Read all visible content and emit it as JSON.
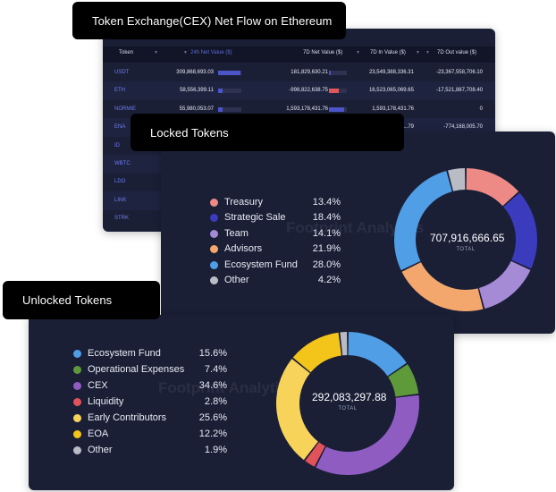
{
  "net_flow": {
    "title": "Token Exchange(CEX) Net Flow on Ethereum",
    "columns": [
      "Token",
      "24h Net Value ($)",
      "7D Net Value ($)",
      "7D In Value ($)",
      "7D Out value ($)"
    ],
    "rows": [
      {
        "token": "USDT",
        "net24": "309,868,693.03",
        "net24_frac": 0.95,
        "net7d": "181,829,630.21",
        "net7d_frac": 0.08,
        "net7d_sign": "pos",
        "in7d": "23,549,388,336.31",
        "out7d": "-23,367,558,706.10"
      },
      {
        "token": "ETH",
        "net24": "58,556,399.11",
        "net24_frac": 0.2,
        "net7d": "-998,822,638.75",
        "net7d_frac": 0.55,
        "net7d_sign": "neg",
        "in7d": "16,523,065,069.65",
        "out7d": "-17,521,887,708.40"
      },
      {
        "token": "NORMIE",
        "net24": "55,980,053.07",
        "net24_frac": 0.18,
        "net7d": "1,593,178,431.76",
        "net7d_frac": 0.85,
        "net7d_sign": "pos",
        "in7d": "1,593,178,431.76",
        "out7d": "0"
      },
      {
        "token": "ENA",
        "net24": "",
        "net7d": "",
        "in7d": "...79",
        "out7d": "-774,168,005.70"
      },
      {
        "token": "ID"
      },
      {
        "token": "WBTC"
      },
      {
        "token": "LDO"
      },
      {
        "token": "LINK"
      },
      {
        "token": "STRK"
      }
    ],
    "colors": {
      "pos": "#4b55c9",
      "neg": "#e0575b"
    }
  },
  "locked": {
    "title": "Locked Tokens",
    "total_value": "707,916,666.65",
    "total_label": "TOTAL",
    "watermark": "Footprint Analytics",
    "items": [
      {
        "label": "Treasury",
        "pct": "13.4%",
        "value": 13.4,
        "color": "#ee8a86"
      },
      {
        "label": "Strategic Sale",
        "pct": "18.4%",
        "value": 18.4,
        "color": "#3a3bbd"
      },
      {
        "label": "Team",
        "pct": "14.1%",
        "value": 14.1,
        "color": "#a58ad6"
      },
      {
        "label": "Advisors",
        "pct": "21.9%",
        "value": 21.9,
        "color": "#f4a76c"
      },
      {
        "label": "Ecosystem Fund",
        "pct": "28.0%",
        "value": 28.0,
        "color": "#4f9ee6"
      },
      {
        "label": "Other",
        "pct": "4.2%",
        "value": 4.2,
        "color": "#b9bcc4"
      }
    ]
  },
  "unlocked": {
    "title": "Unlocked Tokens",
    "total_value": "292,083,297.88",
    "total_label": "TOTAL",
    "watermark": "Footprint Analytics",
    "items": [
      {
        "label": "Ecosystem Fund",
        "pct": "15.6%",
        "value": 15.6,
        "color": "#4f9ee6"
      },
      {
        "label": "Operational Expenses",
        "pct": "7.4%",
        "value": 7.4,
        "color": "#5e9a3a"
      },
      {
        "label": "CEX",
        "pct": "34.6%",
        "value": 34.6,
        "color": "#8f5cc2"
      },
      {
        "label": "Liquidity",
        "pct": "2.8%",
        "value": 2.8,
        "color": "#e2525a"
      },
      {
        "label": "Early Contributors",
        "pct": "25.6%",
        "value": 25.6,
        "color": "#f7d35a"
      },
      {
        "label": "EOA",
        "pct": "12.2%",
        "value": 12.2,
        "color": "#f3c419"
      },
      {
        "label": "Other",
        "pct": "1.9%",
        "value": 1.9,
        "color": "#b9bcc4"
      }
    ]
  }
}
